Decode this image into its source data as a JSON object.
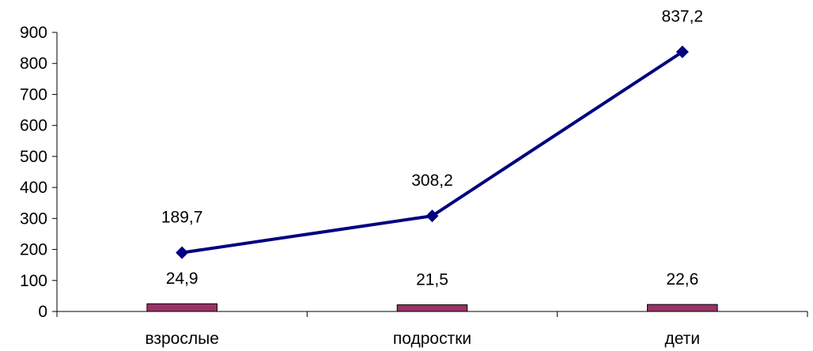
{
  "chart_data": {
    "type": "bar",
    "title": "",
    "xlabel": "",
    "ylabel": "",
    "ylim": [
      0,
      900
    ],
    "ytick_step": 100,
    "yticks": [
      "0",
      "100",
      "200",
      "300",
      "400",
      "500",
      "600",
      "700",
      "800",
      "900"
    ],
    "categories": [
      "взрослые",
      "подростки",
      "дети"
    ],
    "grid": false,
    "legend": "none",
    "series": [
      {
        "type": "bar",
        "values": [
          24.9,
          21.5,
          22.6
        ],
        "labels": [
          "24,9",
          "21,5",
          "22,6"
        ],
        "color": "#993366"
      },
      {
        "type": "line",
        "values": [
          189.7,
          308.2,
          837.2
        ],
        "labels": [
          "189,7",
          "308,2",
          "837,2"
        ],
        "color": "#000080",
        "marker": "diamond"
      }
    ]
  }
}
